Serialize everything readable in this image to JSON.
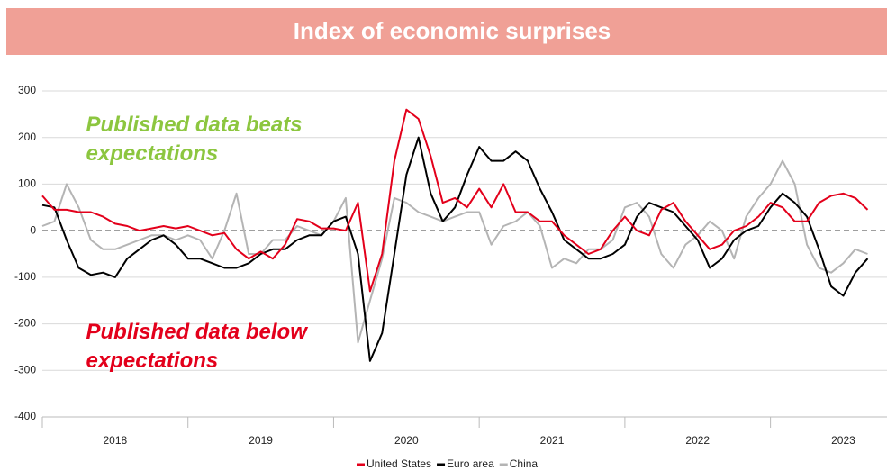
{
  "chart_data": {
    "type": "line",
    "title": "Index of economic surprises",
    "x": [
      2018,
      2018.083,
      2018.167,
      2018.25,
      2018.333,
      2018.417,
      2018.5,
      2018.583,
      2018.667,
      2018.75,
      2018.833,
      2018.917,
      2019,
      2019.083,
      2019.167,
      2019.25,
      2019.333,
      2019.417,
      2019.5,
      2019.583,
      2019.667,
      2019.75,
      2019.833,
      2019.917,
      2020,
      2020.083,
      2020.167,
      2020.25,
      2020.333,
      2020.417,
      2020.5,
      2020.583,
      2020.667,
      2020.75,
      2020.833,
      2020.917,
      2021,
      2021.083,
      2021.167,
      2021.25,
      2021.333,
      2021.417,
      2021.5,
      2021.583,
      2021.667,
      2021.75,
      2021.833,
      2021.917,
      2022,
      2022.083,
      2022.167,
      2022.25,
      2022.333,
      2022.417,
      2022.5,
      2022.583,
      2022.667,
      2022.75,
      2022.833,
      2022.917,
      2023,
      2023.083,
      2023.167,
      2023.25,
      2023.333,
      2023.417,
      2023.5,
      2023.583,
      2023.667
    ],
    "series": [
      {
        "name": "United States",
        "color": "#e3001b",
        "values": [
          75,
          45,
          45,
          40,
          40,
          30,
          15,
          10,
          0,
          5,
          10,
          5,
          10,
          0,
          -10,
          -5,
          -40,
          -60,
          -45,
          -60,
          -30,
          25,
          20,
          5,
          5,
          0,
          60,
          -130,
          -50,
          150,
          260,
          240,
          160,
          60,
          70,
          50,
          90,
          50,
          100,
          40,
          40,
          20,
          20,
          -10,
          -30,
          -50,
          -40,
          0,
          30,
          0,
          -10,
          45,
          60,
          20,
          -10,
          -40,
          -30,
          0,
          10,
          30,
          60,
          50,
          20,
          20,
          60,
          75,
          80,
          70,
          45
        ]
      },
      {
        "name": "Euro area",
        "color": "#000000",
        "values": [
          55,
          50,
          -20,
          -80,
          -95,
          -90,
          -100,
          -60,
          -40,
          -20,
          -10,
          -30,
          -60,
          -60,
          -70,
          -80,
          -80,
          -70,
          -50,
          -40,
          -40,
          -20,
          -10,
          -10,
          20,
          30,
          -50,
          -280,
          -220,
          -50,
          120,
          200,
          80,
          20,
          50,
          120,
          180,
          150,
          150,
          170,
          150,
          90,
          40,
          -20,
          -40,
          -60,
          -60,
          -50,
          -30,
          30,
          60,
          50,
          40,
          10,
          -20,
          -80,
          -60,
          -20,
          0,
          10,
          50,
          80,
          60,
          30,
          -40,
          -120,
          -140,
          -90,
          -60
        ]
      },
      {
        "name": "China",
        "color": "#b4b4b4",
        "values": [
          10,
          20,
          100,
          50,
          -20,
          -40,
          -40,
          -30,
          -20,
          -10,
          -10,
          -20,
          -10,
          -20,
          -60,
          0,
          80,
          -50,
          -50,
          -20,
          -20,
          10,
          0,
          -10,
          20,
          70,
          -240,
          -150,
          -60,
          70,
          60,
          40,
          30,
          20,
          30,
          40,
          40,
          -30,
          10,
          20,
          40,
          10,
          -80,
          -60,
          -70,
          -40,
          -40,
          -20,
          50,
          60,
          30,
          -50,
          -80,
          -30,
          -10,
          20,
          0,
          -60,
          30,
          70,
          100,
          150,
          100,
          -30,
          -80,
          -90,
          -70,
          -40,
          -50
        ]
      }
    ],
    "xlim": [
      2018,
      2023.8
    ],
    "xticks": [
      {
        "value": 2018.5,
        "label": "2018"
      },
      {
        "value": 2019.5,
        "label": "2019"
      },
      {
        "value": 2020.5,
        "label": "2020"
      },
      {
        "value": 2021.5,
        "label": "2021"
      },
      {
        "value": 2022.5,
        "label": "2022"
      },
      {
        "value": 2023.5,
        "label": "2023"
      }
    ],
    "ylim": [
      -400,
      300
    ],
    "yticks": [
      -400,
      -300,
      -200,
      -100,
      0,
      100,
      200,
      300
    ],
    "grid": true,
    "annotations": [
      {
        "lines": [
          "Published data beats",
          "expectations"
        ],
        "color": "#8cc63f",
        "x": 2018.3,
        "y": 225
      },
      {
        "lines": [
          "Published data below",
          "expectations"
        ],
        "color": "#e3001b",
        "x": 2018.3,
        "y": -220
      }
    ]
  }
}
